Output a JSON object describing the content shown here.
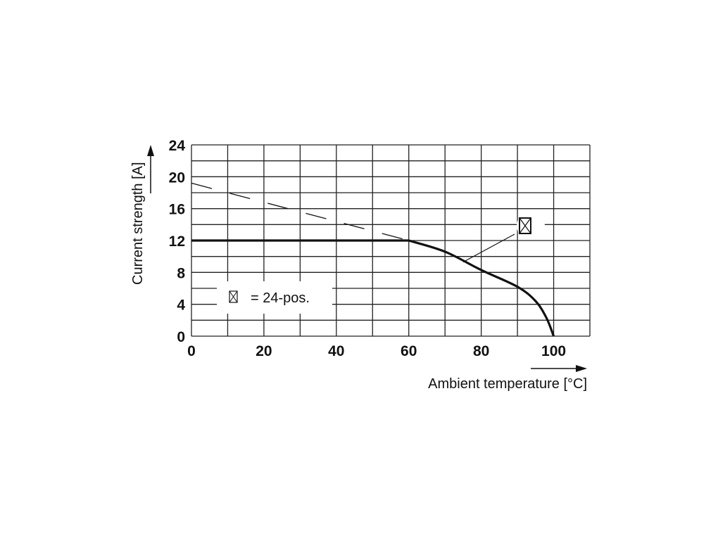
{
  "chart_data": {
    "type": "line",
    "title": "",
    "xlabel": "Ambient temperature [°C]",
    "ylabel": "Current strength [A]",
    "xlim": [
      0,
      110
    ],
    "ylim": [
      0,
      24
    ],
    "x_ticks": [
      0,
      20,
      40,
      60,
      80,
      100
    ],
    "y_ticks": [
      0,
      4,
      8,
      12,
      16,
      20,
      24
    ],
    "x_tick_labels": [
      "0",
      "20",
      "40",
      "60",
      "80",
      "100"
    ],
    "y_tick_labels": [
      "0",
      "4",
      "8",
      "12",
      "16",
      "20",
      "24"
    ],
    "grid": true,
    "grid_x_step": 10,
    "grid_y_step": 2,
    "series": [
      {
        "name": "24-pos.",
        "style": "solid",
        "x": [
          0,
          60,
          70,
          80,
          90,
          95,
          98,
          100
        ],
        "y": [
          12,
          12,
          10.6,
          8.3,
          6.2,
          4.4,
          2.3,
          0
        ]
      },
      {
        "style": "dashed",
        "x": [
          0,
          60
        ],
        "y": [
          19.2,
          12
        ]
      }
    ],
    "legend": {
      "symbol": "⊠",
      "text": "= 24-pos.",
      "placement": "bottom-left"
    },
    "annotation": {
      "symbol": "⊠",
      "at_x": 75,
      "at_y": 9.3
    }
  }
}
